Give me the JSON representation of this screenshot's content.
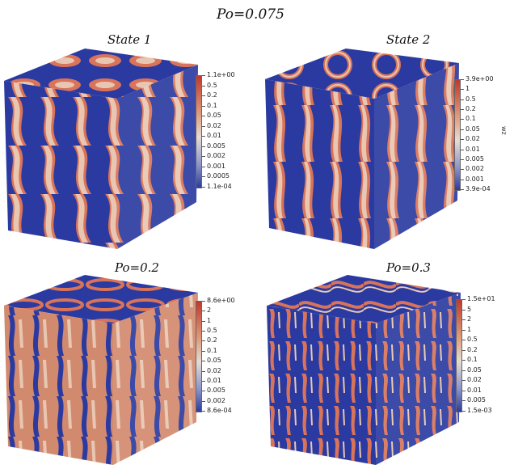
{
  "main_title": "Po=0.075",
  "panels": [
    {
      "id": "state1",
      "title": "State 1",
      "colorbar": {
        "label": "",
        "ticks": [
          "1.1e+00",
          "0.5",
          "0.2",
          "0.1",
          "0.05",
          "0.02",
          "0.01",
          "0.005",
          "0.002",
          "0.001",
          "0.0005",
          "1.1e-04"
        ]
      }
    },
    {
      "id": "state2",
      "title": "State 2",
      "colorbar": {
        "label": "wz",
        "ticks": [
          "3.9e+00",
          "1",
          "0.5",
          "0.2",
          "0.1",
          "0.05",
          "0.02",
          "0.01",
          "0.005",
          "0.002",
          "0.001",
          "3.9e-04"
        ]
      }
    },
    {
      "id": "po02",
      "title": "Po=0.2",
      "colorbar": {
        "label": "",
        "ticks": [
          "8.6e+00",
          "2",
          "1",
          "0.5",
          "0.2",
          "0.1",
          "0.05",
          "0.02",
          "0.01",
          "0.005",
          "0.002",
          "8.6e-04"
        ]
      }
    },
    {
      "id": "po03",
      "title": "Po=0.3",
      "colorbar": {
        "label": "",
        "ticks": [
          "1.5e+01",
          "5",
          "2",
          "1",
          "0.5",
          "0.2",
          "0.1",
          "0.05",
          "0.02",
          "0.01",
          "0.005",
          "1.5e-03"
        ]
      }
    }
  ],
  "colors": {
    "low": "#2b3aa0",
    "mid": "#e6dcd4",
    "high": "#c0392b"
  }
}
